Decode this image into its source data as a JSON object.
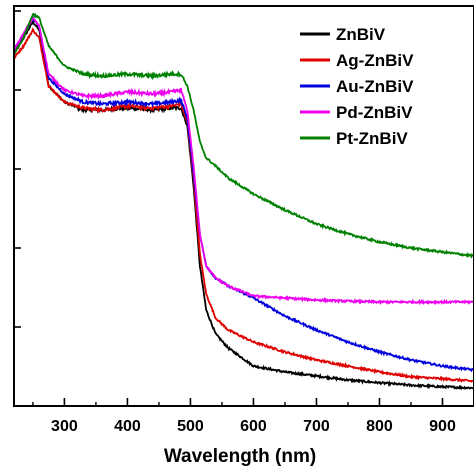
{
  "chart_data": {
    "type": "line",
    "xlabel": "Wavelength (nm)",
    "ylabel": "",
    "xlim": [
      220,
      950
    ],
    "ylim": [
      0,
      1
    ],
    "x_ticks": [
      300,
      400,
      500,
      600,
      700,
      800,
      900
    ],
    "y_ticks_shown": "unlabeled",
    "grid": false,
    "legend_position": "top-right",
    "series": [
      {
        "name": "ZnBiV",
        "color": "#000000",
        "points": [
          [
            220,
            0.88
          ],
          [
            235,
            0.92
          ],
          [
            250,
            0.96
          ],
          [
            260,
            0.94
          ],
          [
            275,
            0.8
          ],
          [
            300,
            0.76
          ],
          [
            330,
            0.74
          ],
          [
            360,
            0.74
          ],
          [
            400,
            0.745
          ],
          [
            440,
            0.74
          ],
          [
            470,
            0.745
          ],
          [
            485,
            0.745
          ],
          [
            495,
            0.7
          ],
          [
            505,
            0.55
          ],
          [
            515,
            0.35
          ],
          [
            525,
            0.24
          ],
          [
            540,
            0.18
          ],
          [
            560,
            0.145
          ],
          [
            600,
            0.1
          ],
          [
            650,
            0.085
          ],
          [
            700,
            0.075
          ],
          [
            750,
            0.065
          ],
          [
            800,
            0.058
          ],
          [
            850,
            0.052
          ],
          [
            900,
            0.048
          ],
          [
            950,
            0.045
          ]
        ]
      },
      {
        "name": "Ag-ZnBiV",
        "color": "#e00000",
        "points": [
          [
            220,
            0.87
          ],
          [
            235,
            0.9
          ],
          [
            250,
            0.94
          ],
          [
            260,
            0.92
          ],
          [
            275,
            0.8
          ],
          [
            300,
            0.76
          ],
          [
            330,
            0.745
          ],
          [
            360,
            0.74
          ],
          [
            400,
            0.75
          ],
          [
            440,
            0.745
          ],
          [
            470,
            0.75
          ],
          [
            485,
            0.755
          ],
          [
            495,
            0.71
          ],
          [
            505,
            0.57
          ],
          [
            515,
            0.38
          ],
          [
            525,
            0.28
          ],
          [
            540,
            0.22
          ],
          [
            560,
            0.19
          ],
          [
            600,
            0.16
          ],
          [
            650,
            0.135
          ],
          [
            700,
            0.115
          ],
          [
            750,
            0.1
          ],
          [
            800,
            0.085
          ],
          [
            850,
            0.073
          ],
          [
            900,
            0.068
          ],
          [
            950,
            0.062
          ]
        ]
      },
      {
        "name": "Au-ZnBiV",
        "color": "#0000dd",
        "points": [
          [
            220,
            0.89
          ],
          [
            235,
            0.93
          ],
          [
            250,
            0.97
          ],
          [
            260,
            0.95
          ],
          [
            275,
            0.82
          ],
          [
            300,
            0.78
          ],
          [
            330,
            0.76
          ],
          [
            360,
            0.755
          ],
          [
            400,
            0.76
          ],
          [
            440,
            0.755
          ],
          [
            470,
            0.76
          ],
          [
            485,
            0.765
          ],
          [
            495,
            0.72
          ],
          [
            505,
            0.58
          ],
          [
            515,
            0.43
          ],
          [
            525,
            0.35
          ],
          [
            540,
            0.32
          ],
          [
            560,
            0.3
          ],
          [
            600,
            0.27
          ],
          [
            650,
            0.225
          ],
          [
            700,
            0.19
          ],
          [
            750,
            0.16
          ],
          [
            800,
            0.135
          ],
          [
            850,
            0.115
          ],
          [
            900,
            0.1
          ],
          [
            950,
            0.09
          ]
        ]
      },
      {
        "name": "Pd-ZnBiV",
        "color": "#ee00ee",
        "points": [
          [
            220,
            0.89
          ],
          [
            235,
            0.93
          ],
          [
            250,
            0.97
          ],
          [
            260,
            0.95
          ],
          [
            275,
            0.83
          ],
          [
            300,
            0.79
          ],
          [
            330,
            0.775
          ],
          [
            360,
            0.775
          ],
          [
            400,
            0.785
          ],
          [
            440,
            0.78
          ],
          [
            470,
            0.785
          ],
          [
            485,
            0.79
          ],
          [
            495,
            0.74
          ],
          [
            505,
            0.6
          ],
          [
            515,
            0.43
          ],
          [
            525,
            0.35
          ],
          [
            540,
            0.32
          ],
          [
            560,
            0.3
          ],
          [
            600,
            0.275
          ],
          [
            650,
            0.27
          ],
          [
            700,
            0.265
          ],
          [
            750,
            0.262
          ],
          [
            800,
            0.26
          ],
          [
            850,
            0.26
          ],
          [
            900,
            0.26
          ],
          [
            950,
            0.26
          ]
        ]
      },
      {
        "name": "Pt-ZnBiV",
        "color": "#008000",
        "points": [
          [
            220,
            0.88
          ],
          [
            235,
            0.92
          ],
          [
            250,
            0.98
          ],
          [
            260,
            0.97
          ],
          [
            275,
            0.9
          ],
          [
            300,
            0.85
          ],
          [
            330,
            0.83
          ],
          [
            360,
            0.825
          ],
          [
            400,
            0.83
          ],
          [
            440,
            0.825
          ],
          [
            470,
            0.83
          ],
          [
            485,
            0.83
          ],
          [
            495,
            0.8
          ],
          [
            505,
            0.74
          ],
          [
            515,
            0.66
          ],
          [
            525,
            0.62
          ],
          [
            540,
            0.6
          ],
          [
            560,
            0.57
          ],
          [
            600,
            0.53
          ],
          [
            650,
            0.49
          ],
          [
            700,
            0.455
          ],
          [
            750,
            0.43
          ],
          [
            800,
            0.41
          ],
          [
            850,
            0.395
          ],
          [
            900,
            0.385
          ],
          [
            950,
            0.375
          ]
        ]
      }
    ]
  }
}
